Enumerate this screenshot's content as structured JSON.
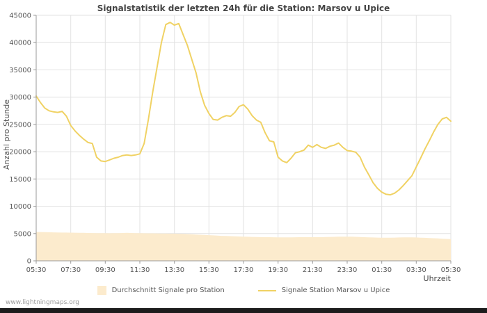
{
  "page": {
    "footer": "www.lightningmaps.org"
  },
  "colors": {
    "line": "#f0d264",
    "area": "#fcebcd",
    "grid": "#e2e2e2",
    "axis": "#9a9a9a",
    "title_text": "#444444",
    "tick_text": "#555555",
    "footer_text": "#999999",
    "bottom_bar": "#1c1c1c"
  },
  "chart_data": {
    "type": "line",
    "title": "Signalstatistik der letzten 24h für die Station: Marsov u Upice",
    "ylabel": "Anzahl pro Stunde",
    "xlabel": "Uhrzeit",
    "ylim": [
      0,
      45000
    ],
    "ytick_step": 5000,
    "grid": true,
    "legend_position": "bottom",
    "x_tick_labels": [
      "05:30",
      "07:30",
      "09:30",
      "11:30",
      "13:30",
      "15:30",
      "17:30",
      "19:30",
      "21:30",
      "23:30",
      "01:30",
      "03:30",
      "05:30"
    ],
    "x_minutes_per_point": 15,
    "series": [
      {
        "name": "Durchschnitt Signale pro Station",
        "type": "area",
        "color": "#fcebcd",
        "values": [
          5300,
          5280,
          5260,
          5240,
          5220,
          5200,
          5180,
          5170,
          5160,
          5150,
          5140,
          5120,
          5100,
          5090,
          5080,
          5070,
          5060,
          5050,
          5060,
          5080,
          5100,
          5120,
          5100,
          5080,
          5060,
          5050,
          5040,
          5030,
          5020,
          5010,
          5000,
          4990,
          4980,
          4960,
          4930,
          4900,
          4860,
          4820,
          4780,
          4740,
          4700,
          4660,
          4620,
          4580,
          4550,
          4520,
          4490,
          4460,
          4430,
          4410,
          4390,
          4370,
          4350,
          4340,
          4330,
          4320,
          4310,
          4300,
          4300,
          4310,
          4320,
          4330,
          4340,
          4340,
          4330,
          4330,
          4340,
          4360,
          4380,
          4400,
          4420,
          4430,
          4430,
          4420,
          4400,
          4370,
          4340,
          4310,
          4280,
          4260,
          4240,
          4230,
          4240,
          4260,
          4280,
          4300,
          4310,
          4300,
          4280,
          4250,
          4220,
          4180,
          4140,
          4100,
          4060,
          4020,
          3980
        ]
      },
      {
        "name": "Signale Station Marsov u Upice",
        "type": "line",
        "color": "#f0d264",
        "values": [
          30200,
          29000,
          28000,
          27500,
          27300,
          27200,
          27400,
          26500,
          24800,
          23800,
          23000,
          22300,
          21700,
          21500,
          19000,
          18300,
          18200,
          18500,
          18800,
          19000,
          19300,
          19400,
          19300,
          19400,
          19600,
          21500,
          26000,
          31000,
          35500,
          40000,
          43300,
          43700,
          43200,
          43500,
          41500,
          39500,
          37000,
          34500,
          31000,
          28500,
          27000,
          25900,
          25800,
          26300,
          26600,
          26500,
          27200,
          28300,
          28600,
          27800,
          26600,
          25800,
          25400,
          23500,
          22000,
          21800,
          19000,
          18300,
          18000,
          18800,
          19800,
          20000,
          20300,
          21200,
          20800,
          21300,
          20800,
          20600,
          21000,
          21200,
          21600,
          20800,
          20200,
          20100,
          19900,
          19000,
          17200,
          15800,
          14300,
          13300,
          12600,
          12200,
          12100,
          12400,
          13000,
          13800,
          14700,
          15600,
          17200,
          18800,
          20500,
          22000,
          23600,
          25000,
          26000,
          26300,
          25600
        ]
      }
    ]
  }
}
